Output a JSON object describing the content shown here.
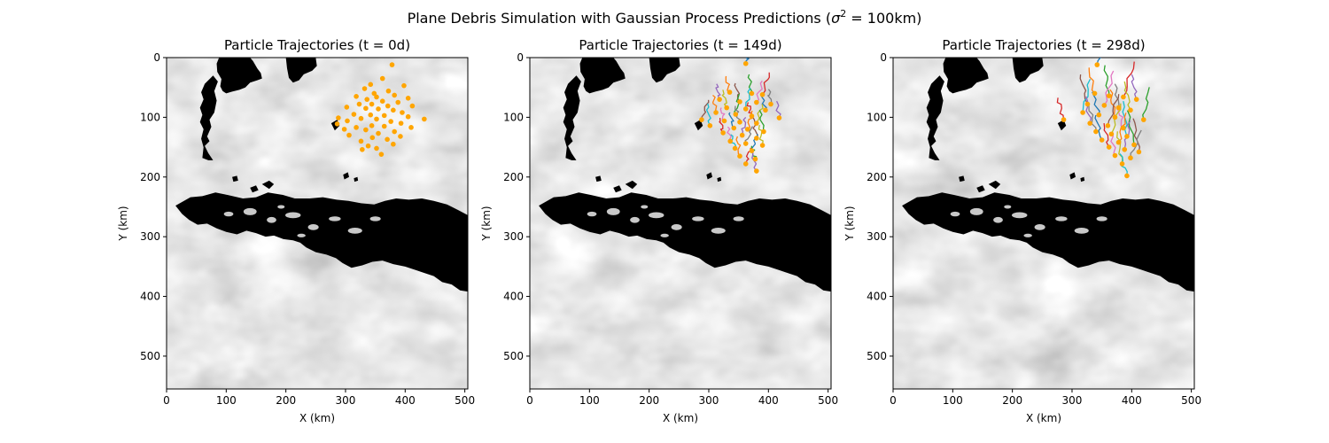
{
  "suptitle": {
    "prefix": "Plane Debris Simulation with Gaussian Process Predictions (",
    "sigma": "σ",
    "sup": "2",
    "suffix": " = 100km)"
  },
  "colors": {
    "particle": "#ffa500",
    "land": "#000000",
    "trajectory_palette": [
      "#1f77b4",
      "#ff7f0e",
      "#2ca02c",
      "#d62728",
      "#9467bd",
      "#8c564b",
      "#e377c2",
      "#7f7f7f",
      "#bcbd22",
      "#17becf"
    ]
  },
  "chart_data": [
    {
      "type": "scatter",
      "title": "Particle Trajectories (t = 0d)",
      "xlabel": "X (km)",
      "ylabel": "Y (km)",
      "xlim": [
        0,
        505
      ],
      "ylim": [
        555,
        0
      ],
      "xticks": [
        "0",
        "100",
        "200",
        "300",
        "400",
        "500"
      ],
      "yticks": [
        "0",
        "100",
        "200",
        "300",
        "400",
        "500"
      ],
      "background": "grayscale velocity field with black land mask",
      "trails": false,
      "points": [
        [
          378,
          12
        ],
        [
          362,
          35
        ],
        [
          342,
          45
        ],
        [
          398,
          47
        ],
        [
          332,
          52
        ],
        [
          372,
          56
        ],
        [
          348,
          60
        ],
        [
          382,
          63
        ],
        [
          318,
          65
        ],
        [
          352,
          66
        ],
        [
          405,
          68
        ],
        [
          336,
          70
        ],
        [
          362,
          73
        ],
        [
          388,
          75
        ],
        [
          323,
          78
        ],
        [
          344,
          78
        ],
        [
          371,
          81
        ],
        [
          412,
          81
        ],
        [
          302,
          83
        ],
        [
          334,
          85
        ],
        [
          355,
          86
        ],
        [
          380,
          88
        ],
        [
          395,
          92
        ],
        [
          314,
          95
        ],
        [
          342,
          96
        ],
        [
          365,
          97
        ],
        [
          405,
          99
        ],
        [
          288,
          101
        ],
        [
          326,
          102
        ],
        [
          352,
          103
        ],
        [
          432,
          103
        ],
        [
          303,
          106
        ],
        [
          376,
          107
        ],
        [
          393,
          110
        ],
        [
          286,
          111
        ],
        [
          344,
          114
        ],
        [
          365,
          115
        ],
        [
          318,
          117
        ],
        [
          410,
          117
        ],
        [
          298,
          120
        ],
        [
          334,
          121
        ],
        [
          382,
          124
        ],
        [
          355,
          127
        ],
        [
          306,
          130
        ],
        [
          392,
          132
        ],
        [
          345,
          134
        ],
        [
          370,
          137
        ],
        [
          326,
          140
        ],
        [
          380,
          145
        ],
        [
          338,
          148
        ],
        [
          352,
          152
        ],
        [
          328,
          154
        ],
        [
          360,
          162
        ]
      ]
    },
    {
      "type": "line",
      "title": "Particle Trajectories (t = 149d)",
      "xlabel": "X (km)",
      "ylabel": "Y (km)",
      "xlim": [
        0,
        505
      ],
      "ylim": [
        555,
        0
      ],
      "xticks": [
        "0",
        "100",
        "200",
        "300",
        "400",
        "500"
      ],
      "yticks": [
        "0",
        "100",
        "200",
        "300",
        "400",
        "500"
      ],
      "background": "grayscale velocity field with black land mask",
      "trails": true,
      "points": [
        [
          362,
          10
        ],
        [
          335,
          58
        ],
        [
          372,
          60
        ],
        [
          390,
          62
        ],
        [
          318,
          70
        ],
        [
          352,
          74
        ],
        [
          380,
          75
        ],
        [
          404,
          78
        ],
        [
          330,
          84
        ],
        [
          362,
          86
        ],
        [
          395,
          88
        ],
        [
          312,
          92
        ],
        [
          345,
          95
        ],
        [
          372,
          98
        ],
        [
          418,
          101
        ],
        [
          288,
          104
        ],
        [
          326,
          106
        ],
        [
          352,
          108
        ],
        [
          380,
          110
        ],
        [
          302,
          114
        ],
        [
          342,
          118
        ],
        [
          365,
          120
        ],
        [
          392,
          124
        ],
        [
          324,
          126
        ],
        [
          356,
          130
        ],
        [
          380,
          135
        ],
        [
          336,
          140
        ],
        [
          362,
          144
        ],
        [
          390,
          147
        ],
        [
          344,
          152
        ],
        [
          372,
          156
        ],
        [
          352,
          165
        ],
        [
          378,
          170
        ],
        [
          362,
          178
        ],
        [
          380,
          190
        ]
      ]
    },
    {
      "type": "line",
      "title": "Particle Trajectories (t = 298d)",
      "xlabel": "X (km)",
      "ylabel": "Y (km)",
      "xlim": [
        0,
        505
      ],
      "ylim": [
        555,
        0
      ],
      "xticks": [
        "0",
        "100",
        "200",
        "300",
        "400",
        "500"
      ],
      "yticks": [
        "0",
        "100",
        "200",
        "300",
        "400",
        "500"
      ],
      "background": "grayscale velocity field with black land mask",
      "trails": true,
      "points": [
        [
          342,
          12
        ],
        [
          338,
          60
        ],
        [
          362,
          64
        ],
        [
          386,
          66
        ],
        [
          408,
          70
        ],
        [
          326,
          78
        ],
        [
          354,
          80
        ],
        [
          378,
          84
        ],
        [
          398,
          88
        ],
        [
          318,
          92
        ],
        [
          345,
          96
        ],
        [
          372,
          100
        ],
        [
          420,
          104
        ],
        [
          286,
          104
        ],
        [
          330,
          110
        ],
        [
          360,
          114
        ],
        [
          386,
          118
        ],
        [
          340,
          124
        ],
        [
          366,
          128
        ],
        [
          392,
          132
        ],
        [
          350,
          138
        ],
        [
          378,
          142
        ],
        [
          404,
          146
        ],
        [
          362,
          150
        ],
        [
          388,
          154
        ],
        [
          412,
          158
        ],
        [
          372,
          164
        ],
        [
          398,
          168
        ],
        [
          384,
          178
        ],
        [
          392,
          198
        ]
      ]
    }
  ]
}
